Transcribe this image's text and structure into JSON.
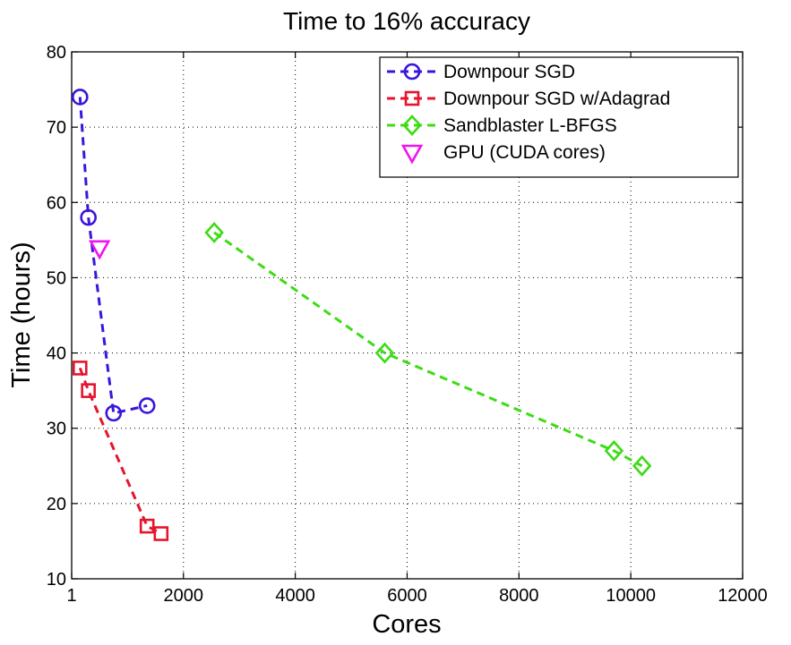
{
  "chart_data": {
    "type": "line",
    "title": "Time to 16% accuracy",
    "xlabel": "Cores",
    "ylabel": "Time (hours)",
    "xlim": [
      1,
      12000
    ],
    "ylim": [
      10,
      80
    ],
    "x_ticks": [
      1,
      2000,
      4000,
      6000,
      8000,
      10000,
      12000
    ],
    "x_tick_labels": [
      "1",
      "2000",
      "4000",
      "6000",
      "8000",
      "10000",
      "12000"
    ],
    "y_ticks": [
      10,
      20,
      30,
      40,
      50,
      60,
      70,
      80
    ],
    "y_tick_labels": [
      "10",
      "20",
      "30",
      "40",
      "50",
      "60",
      "70",
      "80"
    ],
    "grid": true,
    "legend_position": "top-right",
    "series": [
      {
        "name": "Downpour SGD",
        "color": "#3c14dc",
        "marker": "circle",
        "line": "dashed",
        "x": [
          150,
          300,
          750,
          1350
        ],
        "y": [
          74,
          58,
          32,
          33
        ]
      },
      {
        "name": "Downpour SGD w/Adagrad",
        "color": "#e6142d",
        "marker": "square",
        "line": "dashed",
        "x": [
          150,
          300,
          1350,
          1600
        ],
        "y": [
          38,
          35,
          17,
          16
        ]
      },
      {
        "name": "Sandblaster L-BFGS",
        "color": "#3cdc14",
        "marker": "diamond",
        "line": "dashed",
        "x": [
          2550,
          5600,
          9700,
          10200
        ],
        "y": [
          56,
          40,
          27,
          25
        ]
      },
      {
        "name": "GPU (CUDA cores)",
        "color": "#f014f0",
        "marker": "triangle-down",
        "line": "none",
        "x": [
          500
        ],
        "y": [
          54
        ]
      }
    ]
  }
}
